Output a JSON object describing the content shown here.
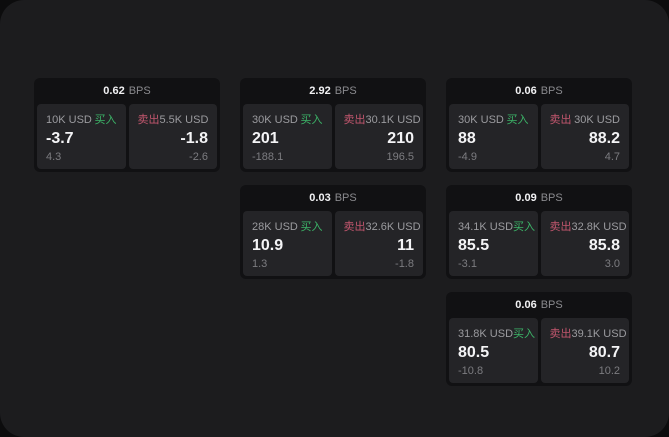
{
  "labels": {
    "bps_unit": "BPS",
    "buy": "买入",
    "sell": "卖出"
  },
  "colors": {
    "backdrop": "#0c0c0d",
    "surface": "#1c1c1e",
    "card_bg": "#111113",
    "panel_bg": "#242427",
    "buy_green": "#3cb468",
    "sell_red": "#c2566e"
  },
  "cards": [
    {
      "bps": "0.62",
      "buy": {
        "amount": "10K USD",
        "price": "-3.7",
        "delta": "4.3"
      },
      "sell": {
        "amount": "5.5K USD",
        "price": "-1.8",
        "delta": "-2.6"
      }
    },
    {
      "bps": "2.92",
      "buy": {
        "amount": "30K USD",
        "price": "201",
        "delta": "-188.1"
      },
      "sell": {
        "amount": "30.1K USD",
        "price": "210",
        "delta": "196.5"
      }
    },
    {
      "bps": "0.06",
      "buy": {
        "amount": "30K USD",
        "price": "88",
        "delta": "-4.9"
      },
      "sell": {
        "amount": "30K USD",
        "price": "88.2",
        "delta": "4.7"
      }
    },
    {
      "bps": "0.03",
      "buy": {
        "amount": "28K USD",
        "price": "10.9",
        "delta": "1.3"
      },
      "sell": {
        "amount": "32.6K USD",
        "price": "11",
        "delta": "-1.8"
      }
    },
    {
      "bps": "0.09",
      "buy": {
        "amount": "34.1K USD",
        "price": "85.5",
        "delta": "-3.1"
      },
      "sell": {
        "amount": "32.8K USD",
        "price": "85.8",
        "delta": "3.0"
      }
    },
    {
      "bps": "0.06",
      "buy": {
        "amount": "31.8K USD",
        "price": "80.5",
        "delta": "-10.8"
      },
      "sell": {
        "amount": "39.1K USD",
        "price": "80.7",
        "delta": "10.2"
      }
    }
  ]
}
